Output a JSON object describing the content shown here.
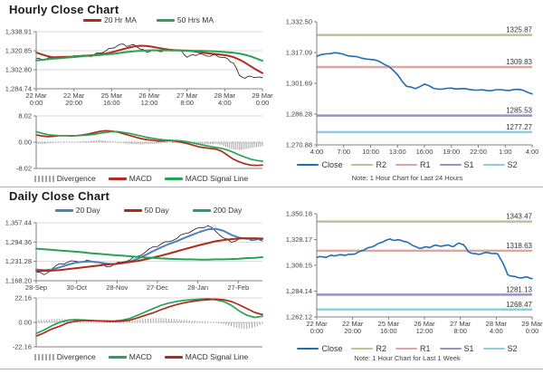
{
  "chart_data": [
    {
      "type": "line",
      "title": "Hourly Close Chart",
      "ylim": [
        1284.74,
        1338.91
      ],
      "yticks": [
        {
          "v": 1338.91,
          "label": "1,338.91"
        },
        {
          "v": 1320.85,
          "label": "1,320.85"
        },
        {
          "v": 1302.8,
          "label": "1,302.80"
        },
        {
          "v": 1284.74,
          "label": "1,284.74"
        }
      ],
      "xticks": [
        [
          "22 Mar",
          "0:00"
        ],
        [
          "22 Mar",
          "20:00"
        ],
        [
          "25 Mar",
          "16:00"
        ],
        [
          "26 Mar",
          "12:00"
        ],
        [
          "27 Mar",
          "8:00"
        ],
        [
          "28 Mar",
          "4:00"
        ],
        [
          "29 Mar",
          "0:00"
        ]
      ],
      "grid": true,
      "legend_position": "top",
      "legend": [
        {
          "label": "20 Hr MA",
          "color": "#b32a1c",
          "swatch": "line"
        },
        {
          "label": "50 Hrs MA",
          "color": "#27a453",
          "swatch": "line"
        }
      ],
      "series": [
        {
          "name": "Close",
          "color": "#1a1a1a",
          "width": 0.8,
          "jag": 1.1,
          "values": [
            1313.5,
            1312.2,
            1313.8,
            1314.6,
            1313.4,
            1315.0,
            1314.4,
            1315.8,
            1316.6,
            1315.6,
            1317.2,
            1318.6,
            1320.6,
            1323.2,
            1325.6,
            1327.2,
            1325.2,
            1326.2,
            1322.2,
            1319.6,
            1321.6,
            1320.6,
            1321.0,
            1321.4,
            1320.8,
            1321.2,
            1314.6,
            1317.0,
            1317.6,
            1316.6,
            1315.6,
            1316.6,
            1314.6,
            1313.2,
            1309.2,
            1297.6,
            1294.6,
            1296.6,
            1295.6,
            1295.2
          ]
        },
        {
          "name": "20 Hr MA",
          "color": "#b32a1c",
          "width": 2,
          "values": [
            1319.2,
            1317.2,
            1315.6,
            1314.6,
            1314.8,
            1315.0,
            1315.2,
            1315.6,
            1316.0,
            1316.4,
            1316.8,
            1317.4,
            1318.2,
            1319.4,
            1320.8,
            1322.4,
            1323.8,
            1325.0,
            1325.6,
            1325.4,
            1324.6,
            1323.6,
            1322.6,
            1321.8,
            1321.4,
            1321.0,
            1320.8,
            1320.4,
            1319.6,
            1318.8,
            1318.2,
            1317.6,
            1317.0,
            1316.2,
            1314.8,
            1312.4,
            1309.4,
            1306.0,
            1302.6,
            1299.6
          ]
        },
        {
          "name": "50 Hrs MA",
          "color": "#27a453",
          "width": 2,
          "values": [
            1311.6,
            1312.2,
            1312.8,
            1313.4,
            1313.8,
            1314.2,
            1314.6,
            1315.0,
            1315.6,
            1316.0,
            1316.4,
            1316.8,
            1317.4,
            1317.8,
            1318.4,
            1319.2,
            1319.8,
            1320.4,
            1320.8,
            1321.0,
            1321.2,
            1321.2,
            1321.2,
            1321.2,
            1321.0,
            1321.0,
            1321.0,
            1320.8,
            1320.8,
            1320.6,
            1320.4,
            1320.2,
            1319.8,
            1319.4,
            1319.0,
            1318.2,
            1317.0,
            1315.4,
            1313.4,
            1311.2
          ]
        }
      ]
    },
    {
      "type": "bar+line",
      "title": "",
      "ylim": [
        -8.02,
        8.02
      ],
      "yticks": [
        {
          "v": 8.02,
          "label": "8.02"
        },
        {
          "v": 0.0,
          "label": "0.00"
        },
        {
          "v": -8.02,
          "label": "-8.02"
        }
      ],
      "xticks": [],
      "grid": true,
      "zero_dotted": true,
      "legend_position": "bottom",
      "legend": [
        {
          "label": "Divergence",
          "color": "#a6a6a6",
          "swatch": "bars"
        },
        {
          "label": "MACD",
          "color": "#b32a1c",
          "swatch": "line"
        },
        {
          "label": "MACD Signal Line",
          "color": "#27a453",
          "swatch": "line"
        }
      ],
      "bars": {
        "name": "Divergence",
        "color": "#a6a6a6",
        "values": [
          -0.6,
          -0.5,
          -0.4,
          -0.2,
          -0.1,
          0.0,
          -0.1,
          0.1,
          0.2,
          0.3,
          0.5,
          0.6,
          0.4,
          0.2,
          -0.1,
          -0.3,
          -0.5,
          -0.6,
          -0.7,
          -0.6,
          -0.5,
          -0.4,
          -0.2,
          -0.1,
          -0.2,
          -0.4,
          -0.6,
          -0.7,
          -0.8,
          -0.7,
          -0.6,
          -0.5,
          -0.9,
          -1.6,
          -2.2,
          -2.4,
          -2.1,
          -1.8,
          -1.5,
          -1.2
        ]
      },
      "series": [
        {
          "name": "MACD",
          "color": "#b32a1c",
          "width": 1.7,
          "values": [
            2.2,
            1.9,
            1.7,
            1.8,
            2.0,
            2.0,
            1.9,
            2.0,
            2.2,
            2.5,
            2.9,
            3.3,
            3.5,
            3.4,
            3.1,
            2.6,
            2.1,
            1.6,
            1.1,
            0.8,
            0.6,
            0.4,
            0.4,
            0.5,
            0.3,
            0.0,
            -0.4,
            -0.9,
            -1.4,
            -1.7,
            -1.9,
            -2.1,
            -2.8,
            -4.0,
            -5.2,
            -6.0,
            -6.6,
            -7.0,
            -7.1,
            -7.0
          ]
        },
        {
          "name": "MACD Signal Line",
          "color": "#27a453",
          "width": 1.7,
          "values": [
            3.2,
            2.7,
            2.3,
            2.1,
            2.0,
            2.0,
            2.0,
            2.0,
            2.1,
            2.2,
            2.4,
            2.7,
            3.0,
            3.2,
            3.2,
            3.0,
            2.7,
            2.3,
            1.9,
            1.5,
            1.2,
            0.9,
            0.7,
            0.6,
            0.5,
            0.4,
            0.1,
            -0.2,
            -0.6,
            -1.0,
            -1.3,
            -1.6,
            -1.9,
            -2.4,
            -3.1,
            -3.9,
            -4.6,
            -5.2,
            -5.6,
            -5.8
          ]
        }
      ]
    },
    {
      "type": "line",
      "title": "Daily Close Chart",
      "ylim": [
        1168.2,
        1357.44
      ],
      "yticks": [
        {
          "v": 1357.44,
          "label": "1,357.44"
        },
        {
          "v": 1294.36,
          "label": "1,294.36"
        },
        {
          "v": 1231.28,
          "label": "1,231.28"
        },
        {
          "v": 1168.2,
          "label": "1,168.20"
        }
      ],
      "xticks": [
        "28-Sep",
        "30-Oct",
        "28-Nov",
        "27-Dec",
        "28-Jan",
        "27-Feb"
      ],
      "grid": true,
      "legend_position": "top",
      "legend": [
        {
          "label": "20 Day",
          "color": "#4f81bd",
          "swatch": "line"
        },
        {
          "label": "50 Day",
          "color": "#b32a1c",
          "swatch": "line"
        },
        {
          "label": "200 Day",
          "color": "#27a453",
          "swatch": "line"
        }
      ],
      "series": [
        {
          "name": "Close",
          "color": "#1a1a1a",
          "width": 0.8,
          "jag": 4,
          "values": [
            1197,
            1188,
            1206,
            1224,
            1228,
            1232,
            1230,
            1233,
            1228,
            1214,
            1222,
            1229,
            1236,
            1248,
            1262,
            1279,
            1288,
            1296,
            1306,
            1322,
            1331,
            1342,
            1348,
            1330,
            1308,
            1294,
            1305,
            1308,
            1301,
            1298
          ]
        },
        {
          "name": "20 Day",
          "color": "#4f81bd",
          "width": 2,
          "values": [
            1205,
            1203,
            1205,
            1212,
            1220,
            1227,
            1230,
            1231,
            1228,
            1224,
            1222,
            1225,
            1231,
            1240,
            1252,
            1265,
            1277,
            1288,
            1297,
            1308,
            1318,
            1328,
            1336,
            1338,
            1331,
            1318,
            1309,
            1305,
            1305,
            1304
          ]
        },
        {
          "name": "50 Day",
          "color": "#b32a1c",
          "width": 2,
          "values": [
            1201,
            1200,
            1201,
            1203,
            1206,
            1209,
            1212,
            1215,
            1218,
            1221,
            1223,
            1226,
            1229,
            1233,
            1238,
            1244,
            1250,
            1257,
            1264,
            1271,
            1278,
            1285,
            1291,
            1297,
            1301,
            1304,
            1306,
            1307,
            1307,
            1306
          ]
        },
        {
          "name": "200 Day",
          "color": "#27a453",
          "width": 2,
          "values": [
            1273,
            1271,
            1269,
            1267,
            1265,
            1263,
            1261,
            1258,
            1256,
            1254,
            1252,
            1250,
            1248,
            1246,
            1244,
            1243,
            1241,
            1240,
            1239,
            1238,
            1238,
            1237,
            1237,
            1238,
            1238,
            1239,
            1240,
            1242,
            1243,
            1245
          ]
        }
      ]
    },
    {
      "type": "bar+line",
      "title": "",
      "ylim": [
        -22.16,
        22.16
      ],
      "yticks": [
        {
          "v": 22.16,
          "label": "22.16"
        },
        {
          "v": 0.0,
          "label": "0.00"
        },
        {
          "v": -22.16,
          "label": "-22.16"
        }
      ],
      "xticks": [],
      "grid": true,
      "zero_dotted": true,
      "legend_position": "bottom",
      "legend": [
        {
          "label": "Divergence",
          "color": "#a6a6a6",
          "swatch": "bars"
        },
        {
          "label": "MACD",
          "color": "#27a453",
          "swatch": "line"
        },
        {
          "label": "MACD Signal Line",
          "color": "#b32a1c",
          "swatch": "line"
        }
      ],
      "bars": {
        "name": "Divergence",
        "color": "#a6a6a6",
        "values": [
          2.5,
          2.0,
          3.0,
          3.5,
          2.5,
          1.5,
          0.5,
          0.2,
          -0.3,
          0.5,
          0.3,
          0.8,
          1.5,
          2.5,
          3.2,
          3.8,
          4.0,
          3.5,
          2.8,
          2.2,
          1.5,
          1.2,
          1.0,
          -0.5,
          -1.5,
          -3.5,
          -5.5,
          -6.0,
          -4.5,
          -1.5
        ]
      },
      "series": [
        {
          "name": "MACD",
          "color": "#27a453",
          "width": 1.7,
          "values": [
            -10,
            -7,
            -3,
            0,
            2,
            2.5,
            2.2,
            1.8,
            1.2,
            1.4,
            1.2,
            2.0,
            3.5,
            6.5,
            9.5,
            12.5,
            15.5,
            17.5,
            19,
            20,
            20.5,
            21,
            21.5,
            20.5,
            19,
            15.5,
            10.5,
            6.5,
            4.5,
            5.5
          ]
        },
        {
          "name": "MACD Signal Line",
          "color": "#b32a1c",
          "width": 1.7,
          "values": [
            -12.5,
            -9.5,
            -6,
            -3.5,
            -0.5,
            1.0,
            1.7,
            1.6,
            1.5,
            1.0,
            0.9,
            1.2,
            2.0,
            4.0,
            6.5,
            8.7,
            11.5,
            14,
            16.2,
            17.8,
            19,
            20,
            20.5,
            21,
            20.5,
            19,
            16,
            12.5,
            9,
            7
          ]
        }
      ]
    },
    {
      "type": "line",
      "title": "",
      "note": "Note: 1 Hour Chart for Last 24 Hours",
      "ylim": [
        1270.88,
        1332.5
      ],
      "yticks": [
        {
          "v": 1332.5,
          "label": "1,332.50"
        },
        {
          "v": 1317.09,
          "label": "1,317.09"
        },
        {
          "v": 1301.69,
          "label": "1,301.69"
        },
        {
          "v": 1286.28,
          "label": "1,286.28"
        },
        {
          "v": 1270.88,
          "label": "1,270.88"
        }
      ],
      "xticks": [
        "4:00",
        "7:00",
        "10:00",
        "13:00",
        "16:00",
        "19:00",
        "22:00",
        "1:00",
        "4:00"
      ],
      "grid": false,
      "legend_position": "bottom",
      "legend": [
        {
          "label": "Close",
          "color": "#1f6db4",
          "swatch": "line"
        },
        {
          "label": "R2",
          "color": "#c4bd97",
          "swatch": "line"
        },
        {
          "label": "R1",
          "color": "#e0a4a1",
          "swatch": "line"
        },
        {
          "label": "S1",
          "color": "#9a92c2",
          "swatch": "line"
        },
        {
          "label": "S2",
          "color": "#92cddc",
          "swatch": "line"
        }
      ],
      "pivots": [
        {
          "name": "R2",
          "value": 1325.87,
          "label": "1325.87",
          "color": "#c4bd97"
        },
        {
          "name": "R1",
          "value": 1309.83,
          "label": "1309.83",
          "color": "#e0a4a1"
        },
        {
          "name": "S1",
          "value": 1285.53,
          "label": "1285.53",
          "color": "#9a92c2"
        },
        {
          "name": "S2",
          "value": 1277.27,
          "label": "1277.27",
          "color": "#92cddc"
        }
      ],
      "series": [
        {
          "name": "Close",
          "color": "#1f6db4",
          "width": 1.6,
          "jag": 0.3,
          "values": [
            1315.2,
            1316.4,
            1317.0,
            1316.2,
            1315.2,
            1314.3,
            1313.6,
            1312.6,
            1310.2,
            1306.0,
            1300.2,
            1299.0,
            1301.3,
            1299.2,
            1298.8,
            1299.3,
            1299.0,
            1298.6,
            1298.3,
            1298.0,
            1298.5,
            1298.2,
            1298.6,
            1298.2,
            1296.4
          ]
        }
      ]
    },
    {
      "type": "line",
      "title": "",
      "note": "Note: 1 Hour Chart for Last 1 Week",
      "ylim": [
        1262.12,
        1350.18
      ],
      "yticks": [
        {
          "v": 1350.18,
          "label": "1,350.18"
        },
        {
          "v": 1328.17,
          "label": "1,328.17"
        },
        {
          "v": 1306.15,
          "label": "1,306.15"
        },
        {
          "v": 1284.14,
          "label": "1,284.14"
        },
        {
          "v": 1262.12,
          "label": "1,262.12"
        }
      ],
      "xticks": [
        [
          "22 Mar",
          "0:00"
        ],
        [
          "22 Mar",
          "20:00"
        ],
        [
          "25 Mar",
          "16:00"
        ],
        [
          "26 Mar",
          "12:00"
        ],
        [
          "27 Mar",
          "8:00"
        ],
        [
          "28 Mar",
          "4:00"
        ],
        [
          "29 Mar",
          "0:00"
        ]
      ],
      "grid": false,
      "legend_position": "bottom",
      "legend": [
        {
          "label": "Close",
          "color": "#1f6db4",
          "swatch": "line"
        },
        {
          "label": "R2",
          "color": "#c4bd97",
          "swatch": "line"
        },
        {
          "label": "R1",
          "color": "#e0a4a1",
          "swatch": "line"
        },
        {
          "label": "S1",
          "color": "#9a92c2",
          "swatch": "line"
        },
        {
          "label": "S2",
          "color": "#92cddc",
          "swatch": "line"
        }
      ],
      "pivots": [
        {
          "name": "R2",
          "value": 1343.47,
          "label": "1343.47",
          "color": "#c4bd97"
        },
        {
          "name": "R1",
          "value": 1318.63,
          "label": "1318.63",
          "color": "#e0a4a1"
        },
        {
          "name": "S1",
          "value": 1281.13,
          "label": "1281.13",
          "color": "#9a92c2"
        },
        {
          "name": "S2",
          "value": 1268.47,
          "label": "1268.47",
          "color": "#92cddc"
        }
      ],
      "series": [
        {
          "name": "Close",
          "color": "#1f6db4",
          "width": 1.6,
          "jag": 0.4,
          "values": [
            1312.8,
            1313.6,
            1313.0,
            1314.8,
            1314.4,
            1315.2,
            1314.8,
            1315.6,
            1316.2,
            1318.4,
            1320.2,
            1321.6,
            1323.2,
            1325.4,
            1327.2,
            1328.6,
            1327.4,
            1327.8,
            1326.4,
            1324.8,
            1322.4,
            1320.6,
            1321.8,
            1321.2,
            1323.2,
            1322.6,
            1322.9,
            1323.4,
            1322.2,
            1325.2,
            1323.8,
            1317.6,
            1316.2,
            1315.6,
            1316.6,
            1317.0,
            1316.2,
            1315.8,
            1308.5,
            1298.2,
            1296.8,
            1295.8,
            1295.4,
            1296.2,
            1294.8
          ]
        }
      ]
    }
  ],
  "colors": {
    "accent_red": "#b32a1c",
    "accent_green": "#27a453",
    "accent_blue_ma": "#4f81bd",
    "close_blue": "#1f6db4",
    "r2": "#c4bd97",
    "r1": "#e0a4a1",
    "s1": "#9a92c2",
    "s2": "#92cddc",
    "divergence_gray": "#a6a6a6",
    "grid": "#d9d9d9",
    "axis": "#808080",
    "tick_text": "#404040"
  }
}
